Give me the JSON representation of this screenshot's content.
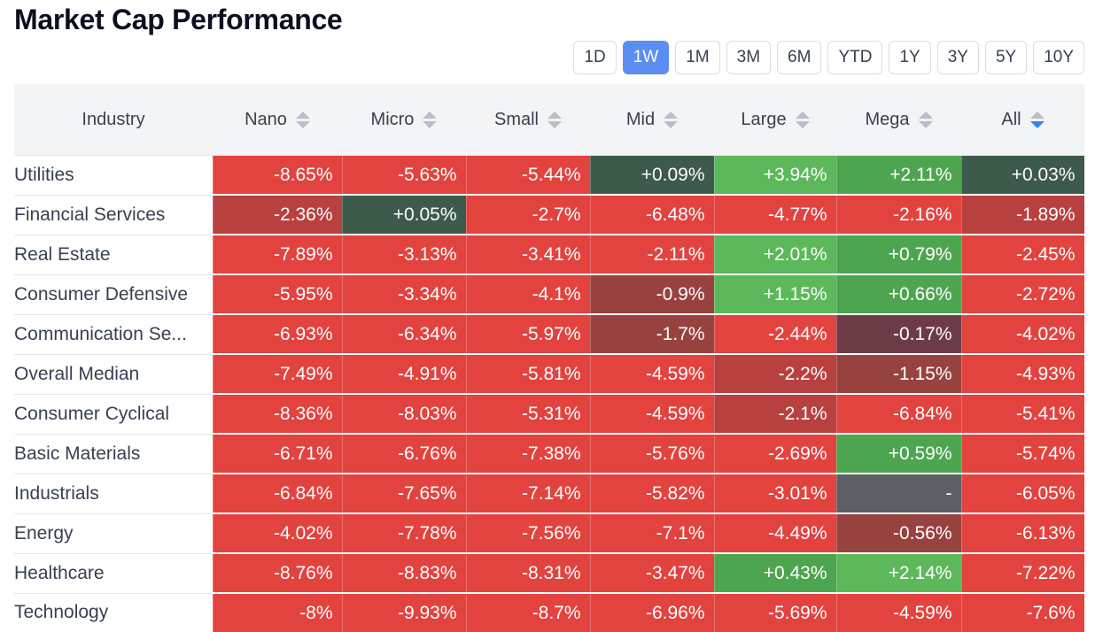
{
  "title": "Market Cap Performance",
  "periods": [
    "1D",
    "1W",
    "1M",
    "3M",
    "6M",
    "YTD",
    "1Y",
    "3Y",
    "5Y",
    "10Y"
  ],
  "active_period": "1W",
  "columns": [
    "Industry",
    "Nano",
    "Micro",
    "Small",
    "Mid",
    "Large",
    "Mega",
    "All"
  ],
  "sorted_column": "All",
  "colors": {
    "red": "#e2433f",
    "dark_red": "#b8403f",
    "darker_red": "#98423f",
    "maroon": "#6d3b45",
    "dark_green": "#3e5a4a",
    "mid_green": "#4ea54f",
    "green": "#5cb85a",
    "gray": "#5d6066"
  },
  "rows": [
    {
      "industry": "Utilities",
      "values": [
        "-8.65%",
        "-5.63%",
        "-5.44%",
        "+0.09%",
        "+3.94%",
        "+2.11%",
        "+0.03%"
      ],
      "shades": [
        "red",
        "red",
        "red",
        "dark_green",
        "green",
        "mid_green",
        "dark_green"
      ]
    },
    {
      "industry": "Financial Services",
      "values": [
        "-2.36%",
        "+0.05%",
        "-2.7%",
        "-6.48%",
        "-4.77%",
        "-2.16%",
        "-1.89%"
      ],
      "shades": [
        "dark_red",
        "dark_green",
        "red",
        "red",
        "red",
        "red",
        "dark_red"
      ]
    },
    {
      "industry": "Real Estate",
      "values": [
        "-7.89%",
        "-3.13%",
        "-3.41%",
        "-2.11%",
        "+2.01%",
        "+0.79%",
        "-2.45%"
      ],
      "shades": [
        "red",
        "red",
        "red",
        "red",
        "green",
        "mid_green",
        "red"
      ]
    },
    {
      "industry": "Consumer Defensive",
      "values": [
        "-5.95%",
        "-3.34%",
        "-4.1%",
        "-0.9%",
        "+1.15%",
        "+0.66%",
        "-2.72%"
      ],
      "shades": [
        "red",
        "red",
        "red",
        "darker_red",
        "green",
        "mid_green",
        "red"
      ]
    },
    {
      "industry": "Communication Se...",
      "values": [
        "-6.93%",
        "-6.34%",
        "-5.97%",
        "-1.7%",
        "-2.44%",
        "-0.17%",
        "-4.02%"
      ],
      "shades": [
        "red",
        "red",
        "red",
        "darker_red",
        "red",
        "maroon",
        "red"
      ]
    },
    {
      "industry": "Overall Median",
      "values": [
        "-7.49%",
        "-4.91%",
        "-5.81%",
        "-4.59%",
        "-2.2%",
        "-1.15%",
        "-4.93%"
      ],
      "shades": [
        "red",
        "red",
        "red",
        "red",
        "dark_red",
        "darker_red",
        "red"
      ]
    },
    {
      "industry": "Consumer Cyclical",
      "values": [
        "-8.36%",
        "-8.03%",
        "-5.31%",
        "-4.59%",
        "-2.1%",
        "-6.84%",
        "-5.41%"
      ],
      "shades": [
        "red",
        "red",
        "red",
        "red",
        "dark_red",
        "red",
        "red"
      ]
    },
    {
      "industry": "Basic Materials",
      "values": [
        "-6.71%",
        "-6.76%",
        "-7.38%",
        "-5.76%",
        "-2.69%",
        "+0.59%",
        "-5.74%"
      ],
      "shades": [
        "red",
        "red",
        "red",
        "red",
        "red",
        "mid_green",
        "red"
      ]
    },
    {
      "industry": "Industrials",
      "values": [
        "-6.84%",
        "-7.65%",
        "-7.14%",
        "-5.82%",
        "-3.01%",
        "-",
        "-6.05%"
      ],
      "shades": [
        "red",
        "red",
        "red",
        "red",
        "red",
        "gray",
        "red"
      ]
    },
    {
      "industry": "Energy",
      "values": [
        "-4.02%",
        "-7.78%",
        "-7.56%",
        "-7.1%",
        "-4.49%",
        "-0.56%",
        "-6.13%"
      ],
      "shades": [
        "red",
        "red",
        "red",
        "red",
        "red",
        "darker_red",
        "red"
      ]
    },
    {
      "industry": "Healthcare",
      "values": [
        "-8.76%",
        "-8.83%",
        "-8.31%",
        "-3.47%",
        "+0.43%",
        "+2.14%",
        "-7.22%"
      ],
      "shades": [
        "red",
        "red",
        "red",
        "red",
        "mid_green",
        "green",
        "red"
      ]
    },
    {
      "industry": "Technology",
      "values": [
        "-8%",
        "-9.93%",
        "-8.7%",
        "-6.96%",
        "-5.69%",
        "-4.59%",
        "-7.6%"
      ],
      "shades": [
        "red",
        "red",
        "red",
        "red",
        "red",
        "red",
        "red"
      ]
    }
  ]
}
